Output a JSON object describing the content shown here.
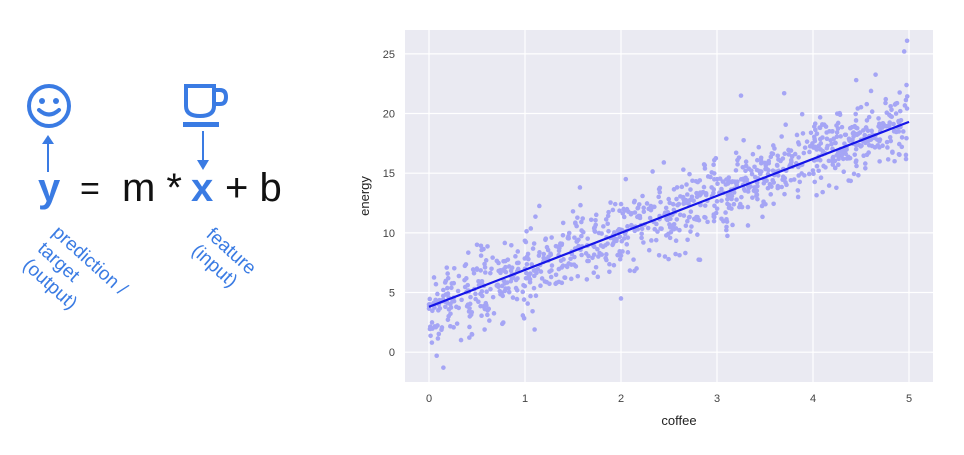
{
  "equation": {
    "y": "y",
    "equals": "=",
    "m_times": "m *",
    "x": "x",
    "plus_b": "+ b",
    "smiley_icon": "smiley-face-icon",
    "cup_icon": "coffee-cup-icon",
    "accent_color": "#3a7be3"
  },
  "annotations": {
    "y_label_lines": [
      "prediction /",
      "target",
      "(output)"
    ],
    "x_label_lines": [
      "feature",
      "(input)"
    ]
  },
  "chart_data": {
    "type": "scatter",
    "title": "",
    "xlabel": "coffee",
    "ylabel": "energy",
    "xlim": [
      -0.25,
      5.25
    ],
    "ylim": [
      -2.5,
      27.0
    ],
    "xticks": [
      0,
      1,
      2,
      3,
      4,
      5
    ],
    "yticks": [
      0,
      5,
      10,
      15,
      20,
      25
    ],
    "grid": true,
    "point_color": "#a5a5f5",
    "line_color": "#1515e8",
    "background_color": "#eaeaf2",
    "point_count": 1000,
    "trend_line": {
      "slope": 3.1,
      "intercept": 3.8,
      "x_range": [
        0,
        5
      ]
    },
    "scatter_sample": [
      [
        0.03,
        0.8
      ],
      [
        0.08,
        -0.3
      ],
      [
        0.15,
        -1.3
      ],
      [
        0.2,
        6.2
      ],
      [
        0.5,
        9.0
      ],
      [
        1.1,
        1.9
      ],
      [
        1.5,
        11.8
      ],
      [
        2.0,
        4.5
      ],
      [
        2.05,
        14.5
      ],
      [
        3.25,
        21.5
      ],
      [
        3.7,
        21.7
      ],
      [
        4.45,
        22.8
      ],
      [
        4.95,
        25.2
      ],
      [
        4.98,
        26.1
      ],
      [
        4.85,
        16.0
      ],
      [
        0.0,
        4.0
      ],
      [
        1.0,
        7.0
      ],
      [
        2.5,
        11.5
      ],
      [
        3.5,
        14.5
      ],
      [
        4.5,
        17.8
      ]
    ]
  }
}
